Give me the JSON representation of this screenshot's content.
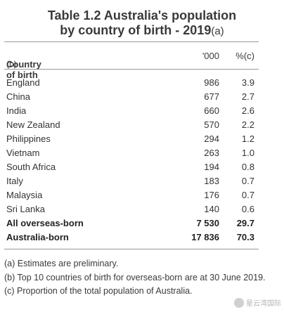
{
  "title": {
    "line1": "Table 1.2 Australia's population",
    "line2": "by country of birth - 2019",
    "line2_suffix": "(a)"
  },
  "table": {
    "headers": {
      "country": "Country of birth",
      "country_suffix": "(b)",
      "thousands": "'000",
      "percent": "%(c)"
    },
    "rows": [
      {
        "country": "England",
        "thousands": "986",
        "percent": "3.9"
      },
      {
        "country": "China",
        "thousands": "677",
        "percent": "2.7"
      },
      {
        "country": "India",
        "thousands": "660",
        "percent": "2.6"
      },
      {
        "country": "New Zealand",
        "thousands": "570",
        "percent": "2.2"
      },
      {
        "country": "Philippines",
        "thousands": "294",
        "percent": "1.2"
      },
      {
        "country": "Vietnam",
        "thousands": "263",
        "percent": "1.0"
      },
      {
        "country": "South Africa",
        "thousands": "194",
        "percent": "0.8"
      },
      {
        "country": "Italy",
        "thousands": "183",
        "percent": "0.7"
      },
      {
        "country": "Malaysia",
        "thousands": "176",
        "percent": "0.7"
      },
      {
        "country": "Sri Lanka",
        "thousands": "140",
        "percent": "0.6"
      }
    ],
    "totals": [
      {
        "country": "All overseas-born",
        "thousands": "7 530",
        "percent": "29.7"
      },
      {
        "country": "Australia-born",
        "thousands": "17 836",
        "percent": "70.3"
      }
    ]
  },
  "notes": [
    "(a) Estimates are preliminary.",
    "(b) Top 10 countries of birth for overseas-born are at 30 June 2019.",
    "(c) Proportion of the total population of Australia."
  ],
  "watermark": {
    "text": "星云湾国际"
  }
}
